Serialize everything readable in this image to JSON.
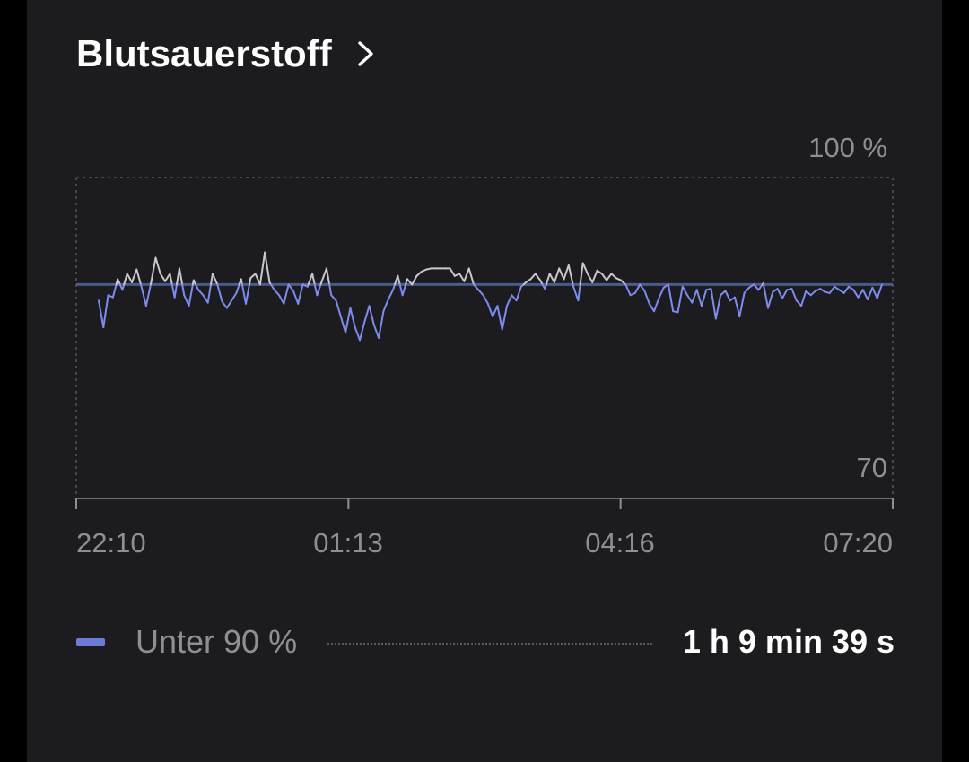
{
  "header": {
    "title": "Blutsauerstoff"
  },
  "colors": {
    "background": "#1c1c1e",
    "above_threshold": "#c7c7cc",
    "below_threshold": "#7b8cf0",
    "threshold_line": "#4a5a8a",
    "axis": "#8e8e93",
    "legend_swatch": "#6c7ad8"
  },
  "chart_data": {
    "type": "line",
    "y_axis": {
      "max_label": "100 %",
      "min_label": "70",
      "range": [
        70,
        100
      ]
    },
    "x_axis": {
      "ticks": [
        "22:10",
        "01:13",
        "04:16",
        "07:20"
      ]
    },
    "threshold": 90,
    "grid": false,
    "series": [
      {
        "values": [
          88.5,
          86.0,
          89.0,
          88.8,
          90.5,
          89.5,
          91.0,
          90.2,
          91.4,
          89.8,
          88.0,
          90.1,
          92.5,
          91.0,
          90.3,
          91.0,
          88.8,
          91.5,
          89.0,
          88.0,
          90.4,
          89.5,
          89.0,
          88.3,
          91.0,
          90.0,
          88.4,
          87.8,
          88.5,
          89.2,
          90.5,
          88.2,
          90.6,
          91.0,
          90.0,
          93.0,
          90.2,
          89.5,
          89.0,
          88.2,
          90.0,
          89.4,
          88.2,
          90.0,
          89.8,
          91.0,
          89.0,
          90.3,
          91.5,
          89.0,
          88.5,
          87.0,
          85.5,
          87.8,
          86.0,
          84.8,
          86.5,
          88.0,
          86.2,
          85.0,
          87.5,
          88.6,
          89.5,
          90.8,
          89.0,
          90.5,
          90.0,
          90.8,
          91.2,
          91.4,
          91.5,
          91.5,
          91.5,
          91.5,
          91.5,
          90.8,
          91.0,
          90.3,
          91.5,
          90.0,
          89.5,
          89.0,
          88.2,
          87.0,
          88.0,
          85.8,
          88.0,
          89.0,
          88.5,
          89.8,
          90.2,
          90.5,
          91.0,
          90.4,
          89.6,
          91.0,
          90.2,
          91.5,
          90.5,
          91.8,
          89.8,
          88.5,
          92.0,
          91.0,
          90.2,
          91.3,
          91.0,
          90.4,
          91.0,
          90.6,
          90.4,
          90.0,
          89.0,
          89.2,
          90.0,
          89.4,
          88.2,
          87.5,
          88.7,
          89.7,
          90.0,
          87.5,
          87.4,
          89.8,
          89.0,
          88.3,
          89.5,
          88.0,
          89.5,
          89.6,
          86.8,
          89.0,
          89.4,
          88.5,
          88.8,
          87.0,
          89.2,
          89.7,
          90.0,
          89.5,
          90.1,
          87.8,
          89.3,
          89.6,
          88.7,
          89.5,
          89.6,
          88.5,
          88.0,
          89.4,
          89.0,
          89.4,
          89.6,
          89.3,
          89.2,
          89.8,
          89.5,
          89.2,
          89.8,
          89.5,
          88.8,
          89.5,
          88.6,
          89.7,
          88.7,
          90.0
        ]
      }
    ]
  },
  "legend": {
    "label": "Unter 90 %",
    "value": "1 h 9 min 39 s"
  }
}
